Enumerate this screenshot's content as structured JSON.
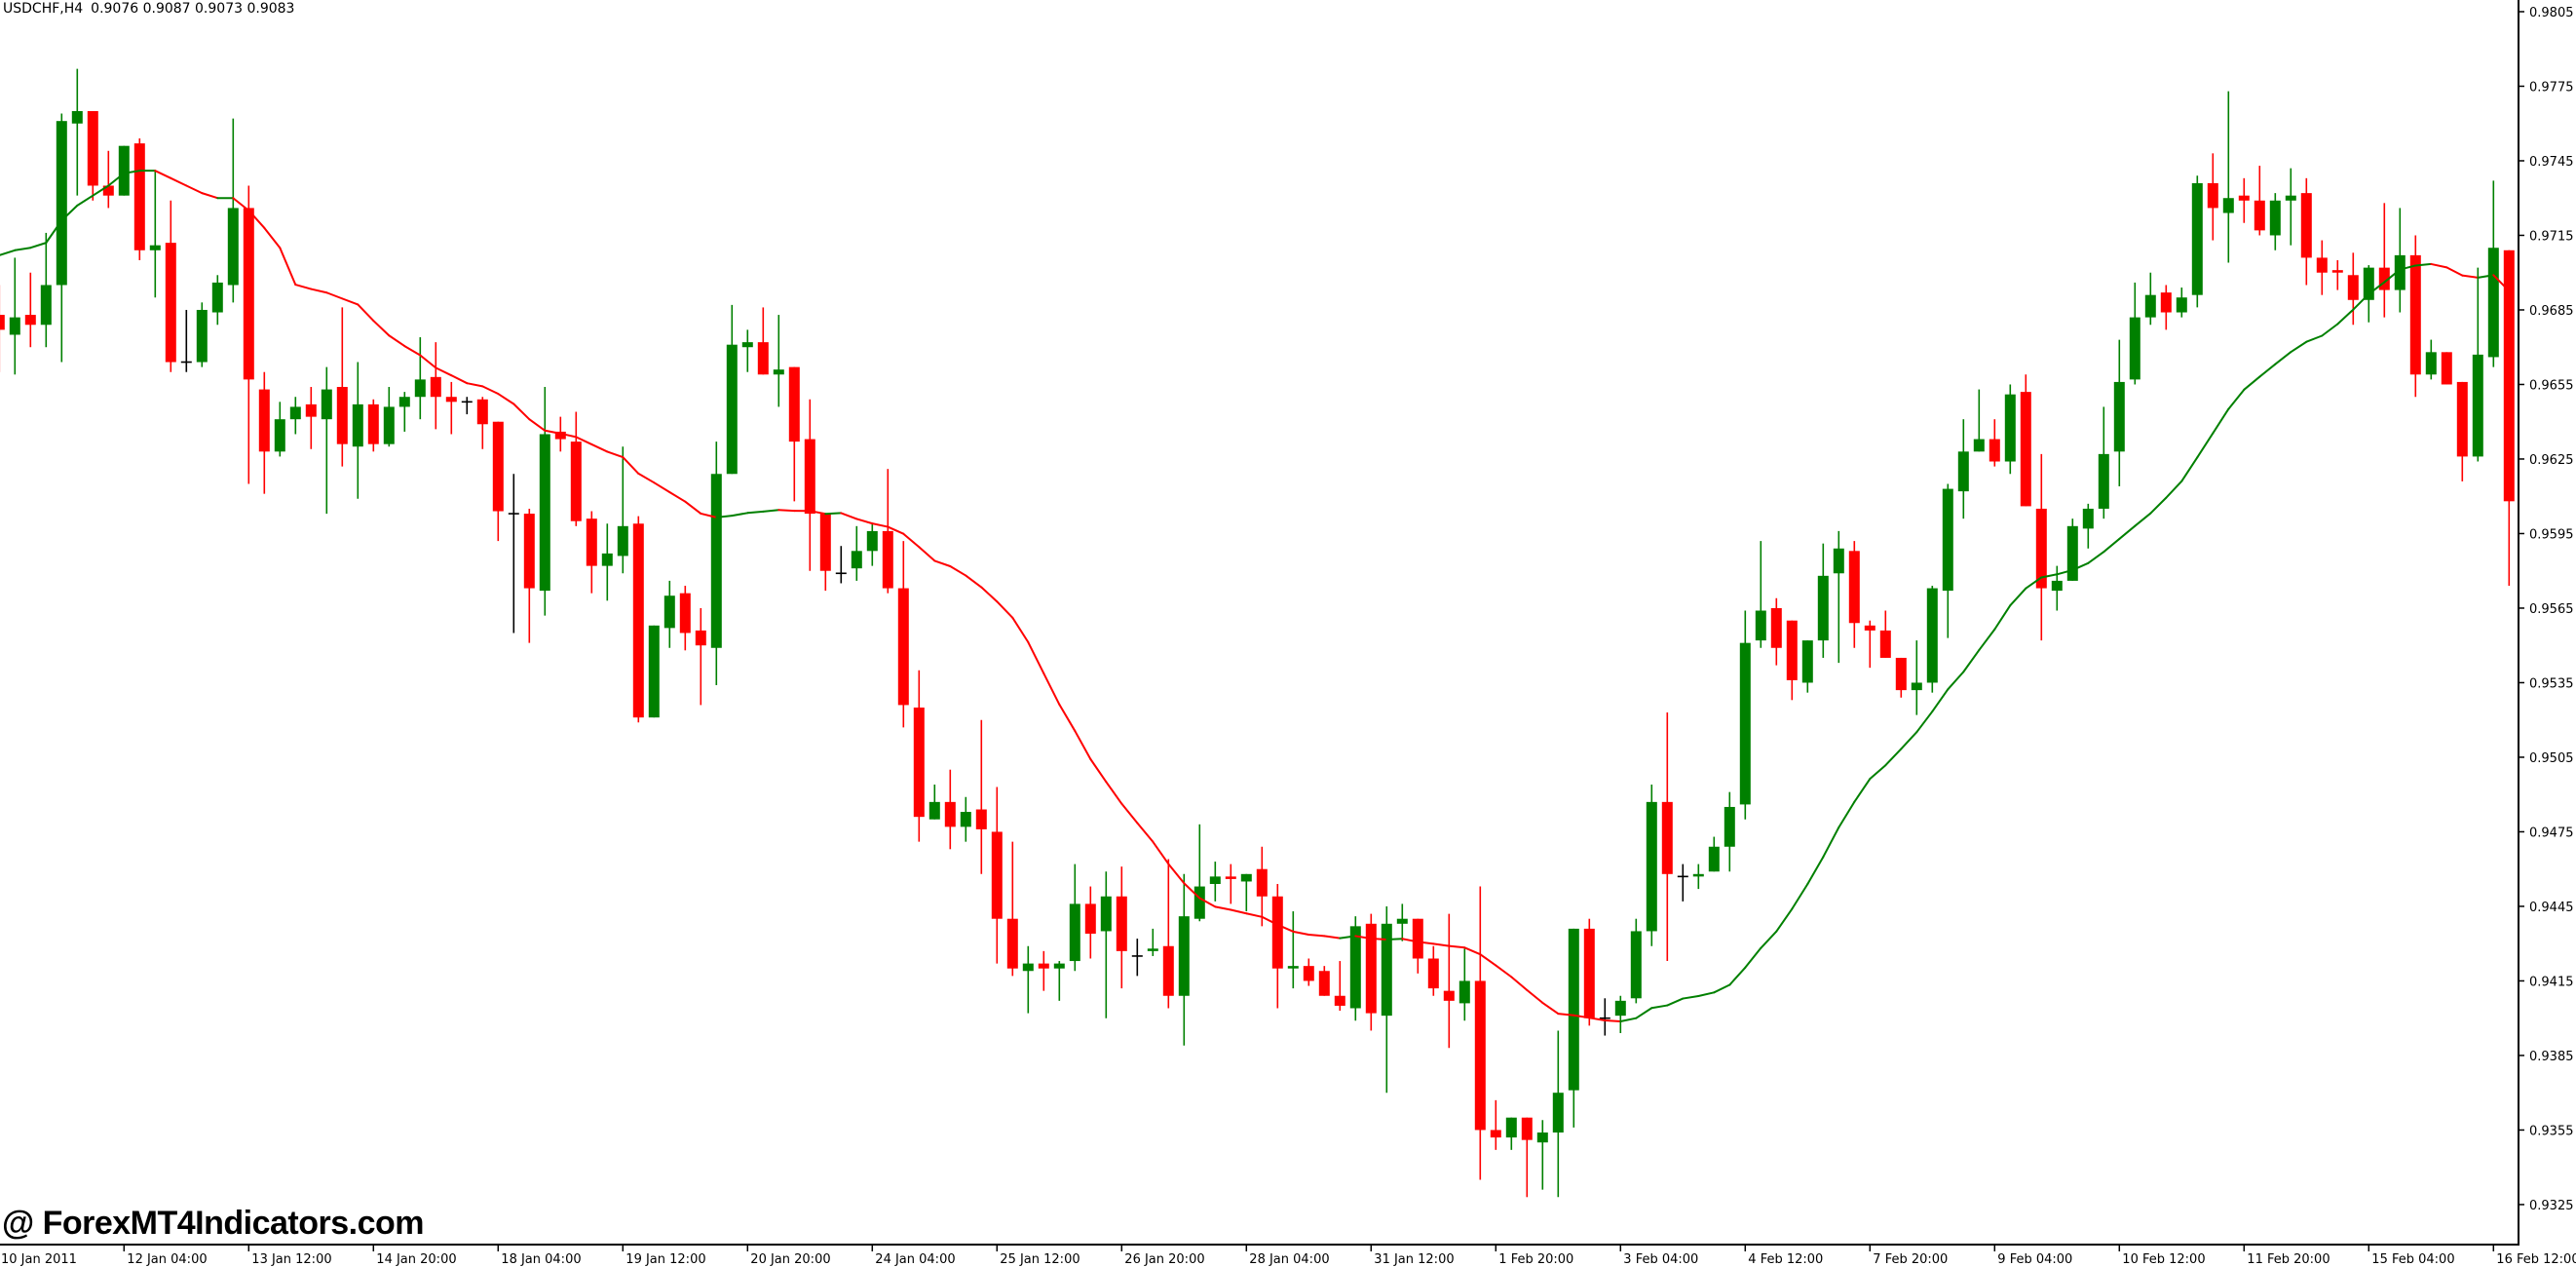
{
  "header": {
    "title": "USDCHF,H4",
    "values": "0.9076 0.9087 0.9073 0.9083"
  },
  "watermark": "@ ForexMT4Indicators.com",
  "chart_data": {
    "type": "candlestick",
    "symbol": "USDCHF",
    "timeframe": "H4",
    "y_range": [
      0.93089,
      0.98097
    ],
    "grid": false,
    "colors": {
      "up": "#008000",
      "down": "#ff0000",
      "doji": "#000000",
      "ma_up": "#008000",
      "ma_down": "#ff0000",
      "axis": "#000000"
    },
    "y_ticks": [
      "0.9805",
      "0.9775",
      "0.9745",
      "0.9715",
      "0.9685",
      "0.9655",
      "0.9625",
      "0.9595",
      "0.9565",
      "0.9535",
      "0.9505",
      "0.9475",
      "0.9445",
      "0.9415",
      "0.9385",
      "0.9355",
      "0.9325"
    ],
    "x_labels": [
      {
        "bar": 0,
        "text": "10 Jan 2011"
      },
      {
        "bar": 8,
        "text": "12 Jan 04:00"
      },
      {
        "bar": 16,
        "text": "13 Jan 12:00"
      },
      {
        "bar": 24,
        "text": "14 Jan 20:00"
      },
      {
        "bar": 32,
        "text": "18 Jan 04:00"
      },
      {
        "bar": 40,
        "text": "19 Jan 12:00"
      },
      {
        "bar": 48,
        "text": "20 Jan 20:00"
      },
      {
        "bar": 56,
        "text": "24 Jan 04:00"
      },
      {
        "bar": 64,
        "text": "25 Jan 12:00"
      },
      {
        "bar": 72,
        "text": "26 Jan 20:00"
      },
      {
        "bar": 80,
        "text": "28 Jan 04:00"
      },
      {
        "bar": 88,
        "text": "31 Jan 12:00"
      },
      {
        "bar": 96,
        "text": "1 Feb 20:00"
      },
      {
        "bar": 104,
        "text": "3 Feb 04:00"
      },
      {
        "bar": 112,
        "text": "4 Feb 12:00"
      },
      {
        "bar": 120,
        "text": "7 Feb 20:00"
      },
      {
        "bar": 128,
        "text": "9 Feb 04:00"
      },
      {
        "bar": 136,
        "text": "10 Feb 12:00"
      },
      {
        "bar": 144,
        "text": "11 Feb 20:00"
      },
      {
        "bar": 152,
        "text": "15 Feb 04:00"
      },
      {
        "bar": 160,
        "text": "16 Feb 12:00"
      }
    ],
    "ma": {
      "period": 20,
      "leading_values": [
        0.9707,
        0.9709,
        0.971,
        0.9712,
        0.9721,
        0.9727,
        0.9731,
        0.9735,
        0.974,
        0.9741,
        0.9741,
        0.9738,
        0.9735,
        0.9732,
        0.973,
        0.973,
        0.9725,
        0.9718,
        0.971
      ]
    },
    "candles_ohlc": [
      [
        0.9683,
        0.9695,
        0.966,
        0.9677
      ],
      [
        0.9675,
        0.9706,
        0.9659,
        0.9682
      ],
      [
        0.9683,
        0.97,
        0.967,
        0.9679
      ],
      [
        0.9679,
        0.9716,
        0.967,
        0.9695
      ],
      [
        0.9695,
        0.9764,
        0.9664,
        0.9761
      ],
      [
        0.976,
        0.9782,
        0.9731,
        0.9765
      ],
      [
        0.9765,
        0.9765,
        0.9729,
        0.9735
      ],
      [
        0.9735,
        0.9749,
        0.9726,
        0.9731
      ],
      [
        0.9731,
        0.9751,
        0.9731,
        0.9751
      ],
      [
        0.9752,
        0.9754,
        0.9705,
        0.9709
      ],
      [
        0.9709,
        0.9741,
        0.969,
        0.9711
      ],
      [
        0.9712,
        0.9729,
        0.966,
        0.9664
      ],
      [
        0.9664,
        0.9685,
        0.966,
        0.9664
      ],
      [
        0.9664,
        0.9688,
        0.9662,
        0.9685
      ],
      [
        0.9684,
        0.9699,
        0.9679,
        0.9696
      ],
      [
        0.9695,
        0.9762,
        0.9688,
        0.9726
      ],
      [
        0.9726,
        0.9735,
        0.9615,
        0.9657
      ],
      [
        0.9653,
        0.966,
        0.9611,
        0.9628
      ],
      [
        0.9628,
        0.9648,
        0.9626,
        0.9641
      ],
      [
        0.9641,
        0.965,
        0.9635,
        0.9646
      ],
      [
        0.9647,
        0.9654,
        0.9629,
        0.9642
      ],
      [
        0.9641,
        0.9662,
        0.9603,
        0.9653
      ],
      [
        0.9654,
        0.9686,
        0.9622,
        0.9631
      ],
      [
        0.963,
        0.9664,
        0.9609,
        0.9647
      ],
      [
        0.9647,
        0.9649,
        0.9628,
        0.9631
      ],
      [
        0.9631,
        0.9654,
        0.963,
        0.9646
      ],
      [
        0.9646,
        0.9652,
        0.9636,
        0.965
      ],
      [
        0.965,
        0.9674,
        0.9641,
        0.9657
      ],
      [
        0.9658,
        0.9672,
        0.9637,
        0.965
      ],
      [
        0.965,
        0.9656,
        0.9635,
        0.9648
      ],
      [
        0.9648,
        0.965,
        0.9643,
        0.9648
      ],
      [
        0.9649,
        0.965,
        0.9629,
        0.9639
      ],
      [
        0.964,
        0.964,
        0.9592,
        0.9604
      ],
      [
        0.9603,
        0.9619,
        0.9555,
        0.9603
      ],
      [
        0.9603,
        0.9605,
        0.9551,
        0.9573
      ],
      [
        0.9572,
        0.9654,
        0.9562,
        0.9635
      ],
      [
        0.9636,
        0.9642,
        0.9628,
        0.9633
      ],
      [
        0.9632,
        0.9644,
        0.9598,
        0.96
      ],
      [
        0.9601,
        0.9604,
        0.9571,
        0.9582
      ],
      [
        0.9582,
        0.9599,
        0.9568,
        0.9587
      ],
      [
        0.9586,
        0.963,
        0.9579,
        0.9598
      ],
      [
        0.9599,
        0.9602,
        0.9519,
        0.9521
      ],
      [
        0.9521,
        0.9558,
        0.9521,
        0.9558
      ],
      [
        0.9557,
        0.9576,
        0.9549,
        0.957
      ],
      [
        0.9571,
        0.9574,
        0.9548,
        0.9555
      ],
      [
        0.9556,
        0.9565,
        0.9526,
        0.955
      ],
      [
        0.9549,
        0.9632,
        0.9534,
        0.9619
      ],
      [
        0.9619,
        0.9687,
        0.9619,
        0.9671
      ],
      [
        0.967,
        0.9677,
        0.966,
        0.9672
      ],
      [
        0.9672,
        0.9686,
        0.9659,
        0.9659
      ],
      [
        0.9659,
        0.9683,
        0.9646,
        0.9661
      ],
      [
        0.9662,
        0.9662,
        0.9608,
        0.9632
      ],
      [
        0.9633,
        0.9649,
        0.958,
        0.9603
      ],
      [
        0.9603,
        0.9603,
        0.9572,
        0.958
      ],
      [
        0.9579,
        0.959,
        0.9575,
        0.9579
      ],
      [
        0.9581,
        0.9598,
        0.9576,
        0.9588
      ],
      [
        0.9588,
        0.9599,
        0.9582,
        0.9596
      ],
      [
        0.9596,
        0.9621,
        0.9571,
        0.9573
      ],
      [
        0.9573,
        0.9592,
        0.9517,
        0.9526
      ],
      [
        0.9525,
        0.954,
        0.9471,
        0.9481
      ],
      [
        0.948,
        0.9494,
        0.948,
        0.9487
      ],
      [
        0.9487,
        0.95,
        0.9468,
        0.9477
      ],
      [
        0.9477,
        0.9489,
        0.9471,
        0.9483
      ],
      [
        0.9484,
        0.952,
        0.9458,
        0.9476
      ],
      [
        0.9475,
        0.9493,
        0.9422,
        0.944
      ],
      [
        0.944,
        0.9471,
        0.9417,
        0.942
      ],
      [
        0.9419,
        0.9429,
        0.9402,
        0.9422
      ],
      [
        0.9422,
        0.9427,
        0.9411,
        0.942
      ],
      [
        0.942,
        0.9423,
        0.9407,
        0.9422
      ],
      [
        0.9423,
        0.9462,
        0.9419,
        0.9446
      ],
      [
        0.9446,
        0.9453,
        0.9424,
        0.9434
      ],
      [
        0.9435,
        0.9459,
        0.94,
        0.9449
      ],
      [
        0.9449,
        0.9461,
        0.9412,
        0.9427
      ],
      [
        0.9425,
        0.9432,
        0.9417,
        0.9425
      ],
      [
        0.9427,
        0.9436,
        0.9425,
        0.9428
      ],
      [
        0.9429,
        0.9464,
        0.9404,
        0.9409
      ],
      [
        0.9409,
        0.9458,
        0.9389,
        0.9441
      ],
      [
        0.944,
        0.9478,
        0.9439,
        0.9453
      ],
      [
        0.9454,
        0.9463,
        0.9447,
        0.9457
      ],
      [
        0.9457,
        0.9462,
        0.9446,
        0.9456
      ],
      [
        0.9455,
        0.9458,
        0.9443,
        0.9458
      ],
      [
        0.946,
        0.9469,
        0.9437,
        0.9449
      ],
      [
        0.9449,
        0.9454,
        0.9404,
        0.942
      ],
      [
        0.942,
        0.9443,
        0.9412,
        0.9421
      ],
      [
        0.9421,
        0.9424,
        0.9413,
        0.9415
      ],
      [
        0.9419,
        0.9421,
        0.9409,
        0.9409
      ],
      [
        0.9409,
        0.9423,
        0.9403,
        0.9405
      ],
      [
        0.9404,
        0.9441,
        0.9399,
        0.9437
      ],
      [
        0.9438,
        0.9442,
        0.9395,
        0.9402
      ],
      [
        0.9401,
        0.9445,
        0.937,
        0.9438
      ],
      [
        0.9438,
        0.9446,
        0.9431,
        0.944
      ],
      [
        0.944,
        0.944,
        0.9418,
        0.9424
      ],
      [
        0.9424,
        0.9429,
        0.9409,
        0.9412
      ],
      [
        0.9411,
        0.9442,
        0.9388,
        0.9407
      ],
      [
        0.9406,
        0.9428,
        0.9399,
        0.9415
      ],
      [
        0.9415,
        0.9453,
        0.9335,
        0.9355
      ],
      [
        0.9355,
        0.9367,
        0.9347,
        0.9352
      ],
      [
        0.9352,
        0.936,
        0.9347,
        0.936
      ],
      [
        0.936,
        0.936,
        0.9328,
        0.9351
      ],
      [
        0.935,
        0.9359,
        0.9331,
        0.9354
      ],
      [
        0.9354,
        0.9395,
        0.9328,
        0.937
      ],
      [
        0.9371,
        0.9436,
        0.9356,
        0.9436
      ],
      [
        0.9436,
        0.944,
        0.9397,
        0.94
      ],
      [
        0.94,
        0.9408,
        0.9393,
        0.94
      ],
      [
        0.9401,
        0.9409,
        0.9394,
        0.9407
      ],
      [
        0.9408,
        0.944,
        0.9406,
        0.9435
      ],
      [
        0.9435,
        0.9494,
        0.9429,
        0.9487
      ],
      [
        0.9487,
        0.9523,
        0.9423,
        0.9458
      ],
      [
        0.9457,
        0.9462,
        0.9447,
        0.9457
      ],
      [
        0.9457,
        0.9462,
        0.9452,
        0.9458
      ],
      [
        0.9459,
        0.9473,
        0.9459,
        0.9469
      ],
      [
        0.9469,
        0.9491,
        0.9459,
        0.9485
      ],
      [
        0.9486,
        0.9564,
        0.948,
        0.9551
      ],
      [
        0.9552,
        0.9592,
        0.9549,
        0.9564
      ],
      [
        0.9565,
        0.9569,
        0.9542,
        0.9549
      ],
      [
        0.956,
        0.956,
        0.9528,
        0.9536
      ],
      [
        0.9535,
        0.9552,
        0.9531,
        0.9552
      ],
      [
        0.9552,
        0.9591,
        0.9545,
        0.9578
      ],
      [
        0.9579,
        0.9596,
        0.9543,
        0.9589
      ],
      [
        0.9588,
        0.9592,
        0.9549,
        0.9559
      ],
      [
        0.9558,
        0.956,
        0.9541,
        0.9556
      ],
      [
        0.9556,
        0.9564,
        0.9545,
        0.9545
      ],
      [
        0.9545,
        0.9545,
        0.9529,
        0.9532
      ],
      [
        0.9532,
        0.9552,
        0.9522,
        0.9535
      ],
      [
        0.9535,
        0.9574,
        0.9531,
        0.9573
      ],
      [
        0.9572,
        0.9615,
        0.9553,
        0.9613
      ],
      [
        0.9612,
        0.9641,
        0.9601,
        0.9628
      ],
      [
        0.9628,
        0.9653,
        0.9628,
        0.9633
      ],
      [
        0.9633,
        0.9641,
        0.9622,
        0.9624
      ],
      [
        0.9624,
        0.9655,
        0.9619,
        0.9651
      ],
      [
        0.9652,
        0.9659,
        0.9606,
        0.9606
      ],
      [
        0.9605,
        0.9627,
        0.9552,
        0.9573
      ],
      [
        0.9572,
        0.9582,
        0.9564,
        0.9576
      ],
      [
        0.9576,
        0.9601,
        0.9576,
        0.9598
      ],
      [
        0.9597,
        0.9607,
        0.9589,
        0.9605
      ],
      [
        0.9605,
        0.9646,
        0.9601,
        0.9627
      ],
      [
        0.9628,
        0.9673,
        0.9614,
        0.9656
      ],
      [
        0.9657,
        0.9696,
        0.9655,
        0.9682
      ],
      [
        0.9682,
        0.97,
        0.9679,
        0.9691
      ],
      [
        0.9692,
        0.9695,
        0.9677,
        0.9684
      ],
      [
        0.9684,
        0.9694,
        0.9682,
        0.969
      ],
      [
        0.9691,
        0.9739,
        0.9686,
        0.9736
      ],
      [
        0.9736,
        0.9748,
        0.9713,
        0.9726
      ],
      [
        0.9724,
        0.9773,
        0.9704,
        0.973
      ],
      [
        0.9731,
        0.9738,
        0.972,
        0.9729
      ],
      [
        0.9729,
        0.9743,
        0.9715,
        0.9717
      ],
      [
        0.9715,
        0.9732,
        0.9709,
        0.9729
      ],
      [
        0.9729,
        0.9742,
        0.9711,
        0.9731
      ],
      [
        0.9732,
        0.9738,
        0.9695,
        0.9706
      ],
      [
        0.9706,
        0.9713,
        0.9691,
        0.97
      ],
      [
        0.9701,
        0.9705,
        0.9693,
        0.97
      ],
      [
        0.9699,
        0.9708,
        0.9679,
        0.9689
      ],
      [
        0.9689,
        0.9703,
        0.968,
        0.9702
      ],
      [
        0.9702,
        0.9728,
        0.9682,
        0.9693
      ],
      [
        0.9693,
        0.9726,
        0.9684,
        0.9707
      ],
      [
        0.9707,
        0.9715,
        0.965,
        0.9659
      ],
      [
        0.9659,
        0.9673,
        0.9657,
        0.9668
      ],
      [
        0.9668,
        0.9668,
        0.9655,
        0.9655
      ],
      [
        0.9656,
        0.9656,
        0.9616,
        0.9626
      ],
      [
        0.9626,
        0.9702,
        0.9624,
        0.9667
      ],
      [
        0.9666,
        0.9737,
        0.9662,
        0.971
      ],
      [
        0.9709,
        0.9709,
        0.9574,
        0.9608
      ]
    ]
  }
}
